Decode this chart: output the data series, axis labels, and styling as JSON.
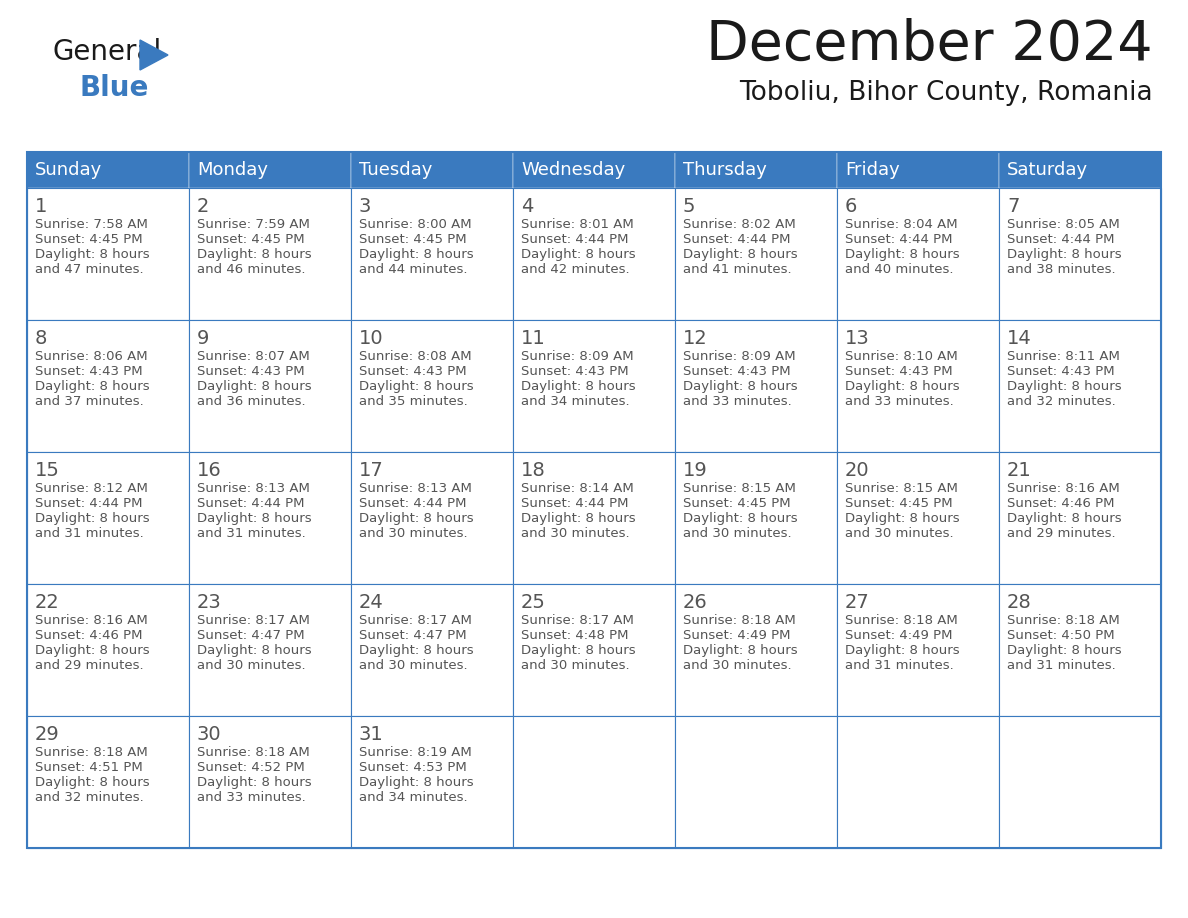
{
  "title": "December 2024",
  "subtitle": "Toboliu, Bihor County, Romania",
  "header_color": "#3a7abf",
  "header_text_color": "#ffffff",
  "border_color": "#3a7abf",
  "day_number_color": "#555555",
  "cell_text_color": "#555555",
  "days_of_week": [
    "Sunday",
    "Monday",
    "Tuesday",
    "Wednesday",
    "Thursday",
    "Friday",
    "Saturday"
  ],
  "calendar_data": [
    [
      {
        "day": 1,
        "sunrise": "7:58 AM",
        "sunset": "4:45 PM",
        "daylight_hours": 8,
        "daylight_min": 47
      },
      {
        "day": 2,
        "sunrise": "7:59 AM",
        "sunset": "4:45 PM",
        "daylight_hours": 8,
        "daylight_min": 46
      },
      {
        "day": 3,
        "sunrise": "8:00 AM",
        "sunset": "4:45 PM",
        "daylight_hours": 8,
        "daylight_min": 44
      },
      {
        "day": 4,
        "sunrise": "8:01 AM",
        "sunset": "4:44 PM",
        "daylight_hours": 8,
        "daylight_min": 42
      },
      {
        "day": 5,
        "sunrise": "8:02 AM",
        "sunset": "4:44 PM",
        "daylight_hours": 8,
        "daylight_min": 41
      },
      {
        "day": 6,
        "sunrise": "8:04 AM",
        "sunset": "4:44 PM",
        "daylight_hours": 8,
        "daylight_min": 40
      },
      {
        "day": 7,
        "sunrise": "8:05 AM",
        "sunset": "4:44 PM",
        "daylight_hours": 8,
        "daylight_min": 38
      }
    ],
    [
      {
        "day": 8,
        "sunrise": "8:06 AM",
        "sunset": "4:43 PM",
        "daylight_hours": 8,
        "daylight_min": 37
      },
      {
        "day": 9,
        "sunrise": "8:07 AM",
        "sunset": "4:43 PM",
        "daylight_hours": 8,
        "daylight_min": 36
      },
      {
        "day": 10,
        "sunrise": "8:08 AM",
        "sunset": "4:43 PM",
        "daylight_hours": 8,
        "daylight_min": 35
      },
      {
        "day": 11,
        "sunrise": "8:09 AM",
        "sunset": "4:43 PM",
        "daylight_hours": 8,
        "daylight_min": 34
      },
      {
        "day": 12,
        "sunrise": "8:09 AM",
        "sunset": "4:43 PM",
        "daylight_hours": 8,
        "daylight_min": 33
      },
      {
        "day": 13,
        "sunrise": "8:10 AM",
        "sunset": "4:43 PM",
        "daylight_hours": 8,
        "daylight_min": 33
      },
      {
        "day": 14,
        "sunrise": "8:11 AM",
        "sunset": "4:43 PM",
        "daylight_hours": 8,
        "daylight_min": 32
      }
    ],
    [
      {
        "day": 15,
        "sunrise": "8:12 AM",
        "sunset": "4:44 PM",
        "daylight_hours": 8,
        "daylight_min": 31
      },
      {
        "day": 16,
        "sunrise": "8:13 AM",
        "sunset": "4:44 PM",
        "daylight_hours": 8,
        "daylight_min": 31
      },
      {
        "day": 17,
        "sunrise": "8:13 AM",
        "sunset": "4:44 PM",
        "daylight_hours": 8,
        "daylight_min": 30
      },
      {
        "day": 18,
        "sunrise": "8:14 AM",
        "sunset": "4:44 PM",
        "daylight_hours": 8,
        "daylight_min": 30
      },
      {
        "day": 19,
        "sunrise": "8:15 AM",
        "sunset": "4:45 PM",
        "daylight_hours": 8,
        "daylight_min": 30
      },
      {
        "day": 20,
        "sunrise": "8:15 AM",
        "sunset": "4:45 PM",
        "daylight_hours": 8,
        "daylight_min": 30
      },
      {
        "day": 21,
        "sunrise": "8:16 AM",
        "sunset": "4:46 PM",
        "daylight_hours": 8,
        "daylight_min": 29
      }
    ],
    [
      {
        "day": 22,
        "sunrise": "8:16 AM",
        "sunset": "4:46 PM",
        "daylight_hours": 8,
        "daylight_min": 29
      },
      {
        "day": 23,
        "sunrise": "8:17 AM",
        "sunset": "4:47 PM",
        "daylight_hours": 8,
        "daylight_min": 30
      },
      {
        "day": 24,
        "sunrise": "8:17 AM",
        "sunset": "4:47 PM",
        "daylight_hours": 8,
        "daylight_min": 30
      },
      {
        "day": 25,
        "sunrise": "8:17 AM",
        "sunset": "4:48 PM",
        "daylight_hours": 8,
        "daylight_min": 30
      },
      {
        "day": 26,
        "sunrise": "8:18 AM",
        "sunset": "4:49 PM",
        "daylight_hours": 8,
        "daylight_min": 30
      },
      {
        "day": 27,
        "sunrise": "8:18 AM",
        "sunset": "4:49 PM",
        "daylight_hours": 8,
        "daylight_min": 31
      },
      {
        "day": 28,
        "sunrise": "8:18 AM",
        "sunset": "4:50 PM",
        "daylight_hours": 8,
        "daylight_min": 31
      }
    ],
    [
      {
        "day": 29,
        "sunrise": "8:18 AM",
        "sunset": "4:51 PM",
        "daylight_hours": 8,
        "daylight_min": 32
      },
      {
        "day": 30,
        "sunrise": "8:18 AM",
        "sunset": "4:52 PM",
        "daylight_hours": 8,
        "daylight_min": 33
      },
      {
        "day": 31,
        "sunrise": "8:19 AM",
        "sunset": "4:53 PM",
        "daylight_hours": 8,
        "daylight_min": 34
      },
      null,
      null,
      null,
      null
    ]
  ],
  "figwidth": 11.88,
  "figheight": 9.18,
  "dpi": 100
}
